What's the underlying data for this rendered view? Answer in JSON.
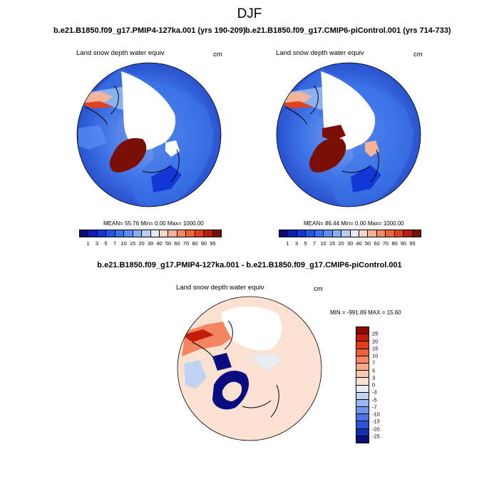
{
  "figure": {
    "title": "DJF",
    "diff_title": "b.e21.B1850.f09_g17.PMIP4-127ka.001 - b.e21.B1850.f09_g17.CMIP6-piControl.001"
  },
  "panels": [
    {
      "case_title": "b.e21.B1850.f09_g17.PMIP4-127ka.001 (yrs 190-209)",
      "variable": "Land snow depth water equiv",
      "units": "cm",
      "stats": "MEAN=  55.76  Min=   0.00  Max= 1000.00"
    },
    {
      "case_title": "b.e21.B1850.f09_g17.CMIP6-piControl.001 (yrs 714-733)",
      "variable": "Land snow depth water equiv",
      "units": "cm",
      "stats": "MEAN=  86.44  Min=   0.00  Max= 1000.00"
    },
    {
      "variable": "Land snow depth water equiv",
      "units": "cm",
      "stats": "MIN = -991.89 MAX =  15.60"
    }
  ],
  "colorbar_abs": {
    "labels": [
      "1",
      "3",
      "5",
      "7",
      "10",
      "15",
      "20",
      "30",
      "40",
      "50",
      "60",
      "70",
      "80",
      "90",
      "95"
    ],
    "colors": [
      "#0a0a7a",
      "#0b1fb4",
      "#1337d6",
      "#2057e8",
      "#3a73ef",
      "#5a8ef2",
      "#86aef4",
      "#b8cdf3",
      "#e6eaf5",
      "#f8d6c6",
      "#f4b296",
      "#f28a63",
      "#ee6538",
      "#e2411c",
      "#b81e0b",
      "#7a0f05"
    ]
  },
  "colorbar_diff": {
    "labels": [
      "25",
      "20",
      "15",
      "10",
      "7",
      "5",
      "3",
      "0",
      "-3",
      "-5",
      "-7",
      "-10",
      "-15",
      "-20",
      "-25"
    ],
    "colors": [
      "#8b0b04",
      "#c41c0a",
      "#e23d17",
      "#f05f33",
      "#f58460",
      "#f8a98b",
      "#f9c8b3",
      "#fbe1d2",
      "#e8ecf5",
      "#c0d3f4",
      "#98b6f2",
      "#6f95ee",
      "#4a73e6",
      "#2a51d6",
      "#1230b4",
      "#0a0d80"
    ]
  }
}
